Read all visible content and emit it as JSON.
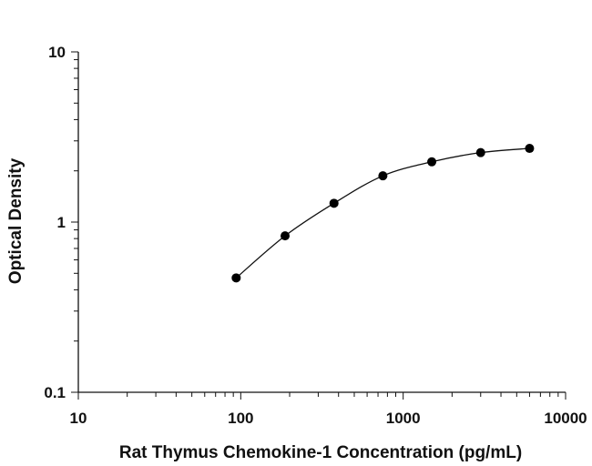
{
  "chart_data": {
    "type": "scatter",
    "title": "",
    "xlabel": "Rat Thymus Chemokine-1 Concentration (pg/mL)",
    "ylabel": "Optical Density",
    "xscale": "log",
    "yscale": "log",
    "xlim": [
      10,
      10000
    ],
    "ylim": [
      0.1,
      10
    ],
    "xticks": [
      10,
      100,
      1000,
      10000
    ],
    "xtick_labels": [
      "10",
      "100",
      "1000",
      "10000"
    ],
    "yticks": [
      0.1,
      1,
      10
    ],
    "ytick_labels": [
      "0.1",
      "1",
      "10"
    ],
    "grid": false,
    "legend": "none",
    "fit_curve": true,
    "marker_color": "#000000",
    "series": [
      {
        "x": [
          93.75,
          187.5,
          375,
          750,
          1500,
          3000,
          6000
        ],
        "y": [
          0.47,
          0.83,
          1.29,
          1.87,
          2.26,
          2.56,
          2.71
        ]
      }
    ]
  }
}
